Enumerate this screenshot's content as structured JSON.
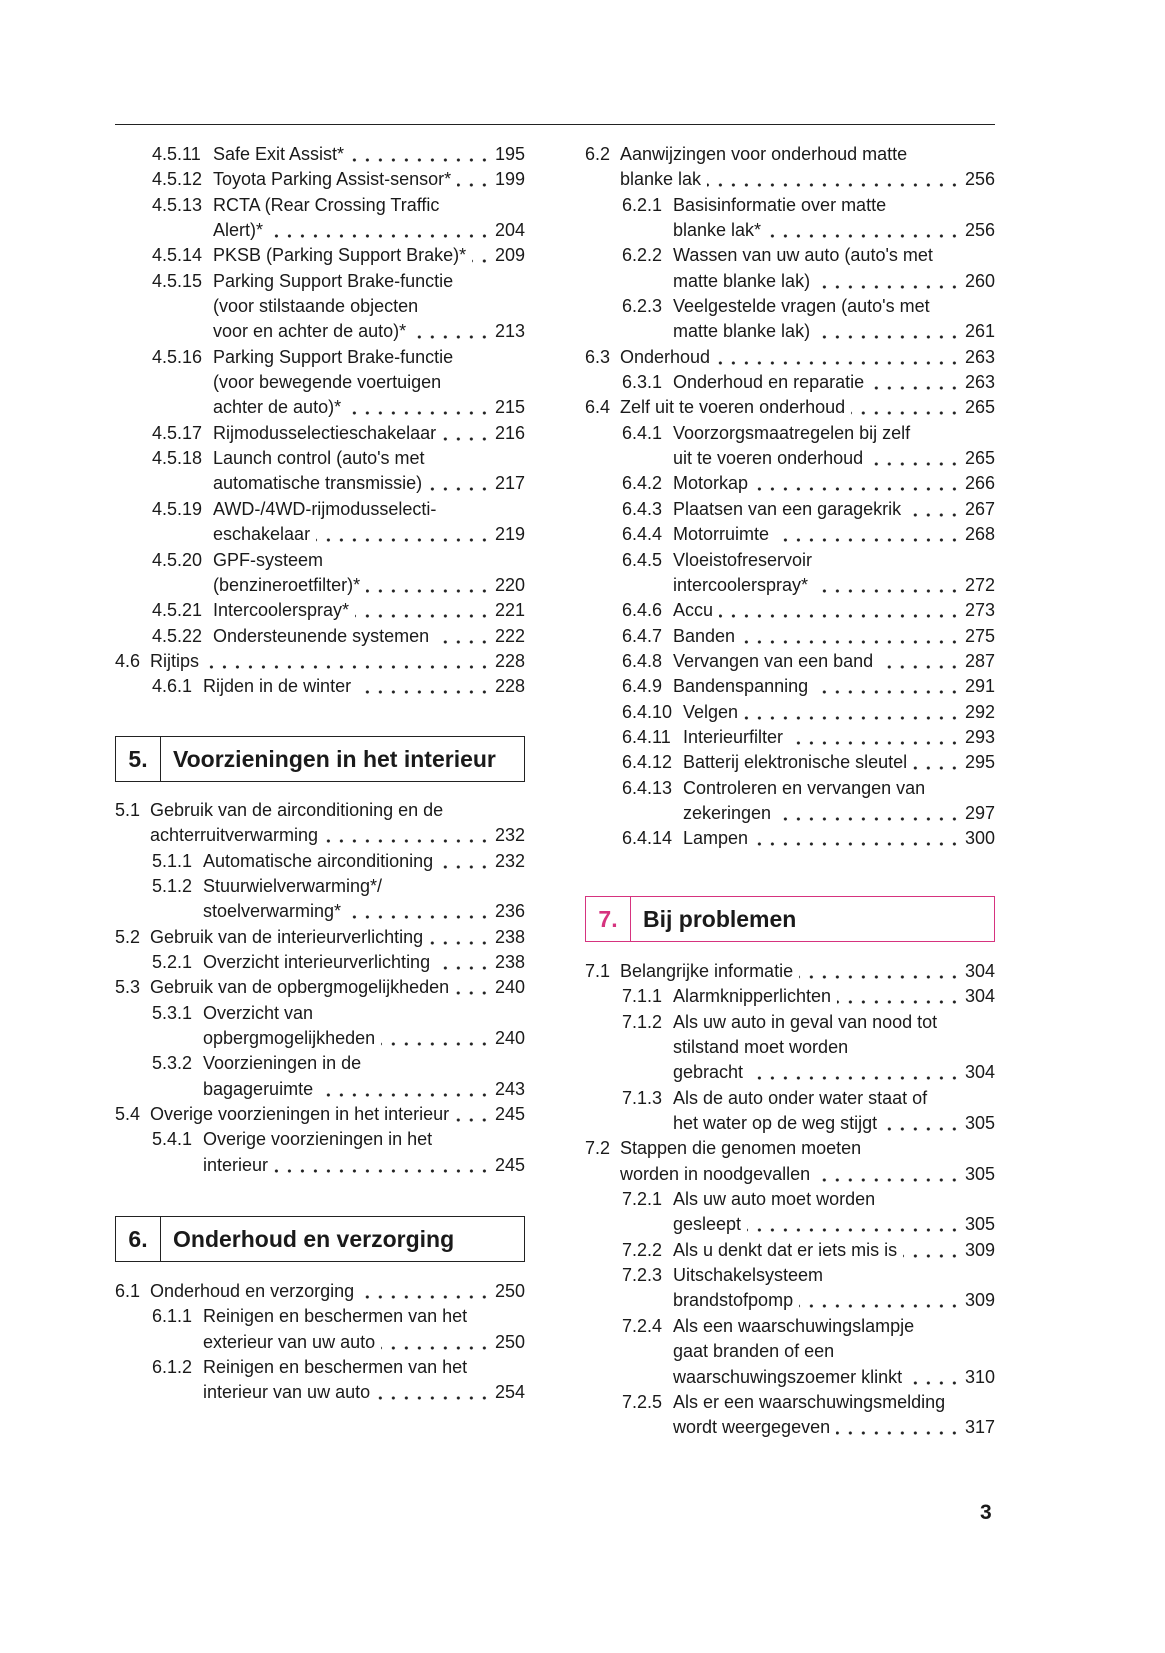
{
  "accent_color": "#d6337f",
  "page_number": "3",
  "left": {
    "block_a": [
      {
        "num": "4.5.11",
        "level": 2,
        "long": true,
        "lines": [
          "Safe Exit Assist*"
        ],
        "page": "195"
      },
      {
        "num": "4.5.12",
        "level": 2,
        "long": true,
        "lines": [
          "Toyota Parking Assist-sensor*"
        ],
        "page": "199"
      },
      {
        "num": "4.5.13",
        "level": 2,
        "long": true,
        "lines": [
          "RCTA (Rear Crossing Traffic",
          "Alert)*"
        ],
        "page": "204"
      },
      {
        "num": "4.5.14",
        "level": 2,
        "long": true,
        "lines": [
          "PKSB (Parking Support Brake)*"
        ],
        "page": "209"
      },
      {
        "num": "4.5.15",
        "level": 2,
        "long": true,
        "lines": [
          "Parking Support Brake-functie",
          "(voor stilstaande objecten",
          "voor en achter de auto)*"
        ],
        "page": "213"
      },
      {
        "num": "4.5.16",
        "level": 2,
        "long": true,
        "lines": [
          "Parking Support Brake-functie",
          "(voor bewegende voertuigen",
          "achter de auto)*"
        ],
        "page": "215"
      },
      {
        "num": "4.5.17",
        "level": 2,
        "long": true,
        "lines": [
          "Rijmodusselectieschakelaar"
        ],
        "page": "216"
      },
      {
        "num": "4.5.18",
        "level": 2,
        "long": true,
        "lines": [
          "Launch control (auto's met",
          "automatische transmissie)"
        ],
        "page": "217"
      },
      {
        "num": "4.5.19",
        "level": 2,
        "long": true,
        "lines": [
          "AWD-/4WD-rijmodusselecti-",
          "eschakelaar"
        ],
        "page": "219"
      },
      {
        "num": "4.5.20",
        "level": 2,
        "long": true,
        "lines": [
          "GPF-systeem",
          "(benzineroetfilter)*"
        ],
        "page": "220"
      },
      {
        "num": "4.5.21",
        "level": 2,
        "long": true,
        "lines": [
          "Intercoolerspray*"
        ],
        "page": "221"
      },
      {
        "num": "4.5.22",
        "level": 2,
        "long": true,
        "lines": [
          "Ondersteunende systemen"
        ],
        "page": "222"
      },
      {
        "num": "4.6",
        "level": 1,
        "lines": [
          "Rijtips"
        ],
        "page": "228"
      },
      {
        "num": "4.6.1",
        "level": 2,
        "lines": [
          "Rijden in de winter"
        ],
        "page": "228"
      }
    ],
    "chapter5": {
      "num": "5.",
      "title": "Voorzieningen in het interieur"
    },
    "block_b": [
      {
        "num": "5.1",
        "level": 1,
        "lines": [
          "Gebruik van de airconditioning en de",
          "achterruitverwarming"
        ],
        "page": "232"
      },
      {
        "num": "5.1.1",
        "level": 2,
        "lines": [
          "Automatische airconditioning"
        ],
        "page": "232"
      },
      {
        "num": "5.1.2",
        "level": 2,
        "lines": [
          "Stuurwielverwarming*/",
          "stoelverwarming*"
        ],
        "page": "236"
      },
      {
        "num": "5.2",
        "level": 1,
        "lines": [
          "Gebruik van de interieurverlichting"
        ],
        "page": "238"
      },
      {
        "num": "5.2.1",
        "level": 2,
        "lines": [
          "Overzicht interieurverlichting"
        ],
        "page": "238"
      },
      {
        "num": "5.3",
        "level": 1,
        "lines": [
          "Gebruik van de opbergmogelijkheden"
        ],
        "page": "240"
      },
      {
        "num": "5.3.1",
        "level": 2,
        "lines": [
          "Overzicht van",
          "opbergmogelijkheden"
        ],
        "page": "240"
      },
      {
        "num": "5.3.2",
        "level": 2,
        "lines": [
          "Voorzieningen in de",
          "bagageruimte"
        ],
        "page": "243"
      },
      {
        "num": "5.4",
        "level": 1,
        "lines": [
          "Overige voorzieningen in het interieur"
        ],
        "page": "245"
      },
      {
        "num": "5.4.1",
        "level": 2,
        "lines": [
          "Overige voorzieningen in het",
          "interieur"
        ],
        "page": "245"
      }
    ],
    "chapter6": {
      "num": "6.",
      "title": "Onderhoud en verzorging"
    },
    "block_c": [
      {
        "num": "6.1",
        "level": 1,
        "lines": [
          "Onderhoud en verzorging"
        ],
        "page": "250"
      },
      {
        "num": "6.1.1",
        "level": 2,
        "lines": [
          "Reinigen en beschermen van het",
          "exterieur van uw auto"
        ],
        "page": "250"
      },
      {
        "num": "6.1.2",
        "level": 2,
        "lines": [
          "Reinigen en beschermen van het",
          "interieur van uw auto"
        ],
        "page": "254"
      }
    ]
  },
  "right": {
    "block_d": [
      {
        "num": "6.2",
        "level": 1,
        "lines": [
          "Aanwijzingen voor onderhoud matte",
          "blanke lak"
        ],
        "page": "256"
      },
      {
        "num": "6.2.1",
        "level": 2,
        "lines": [
          "Basisinformatie over matte",
          "blanke lak*"
        ],
        "page": "256"
      },
      {
        "num": "6.2.2",
        "level": 2,
        "lines": [
          "Wassen van uw auto (auto's met",
          "matte blanke lak)"
        ],
        "page": "260"
      },
      {
        "num": "6.2.3",
        "level": 2,
        "lines": [
          "Veelgestelde vragen (auto's met",
          "matte blanke lak)"
        ],
        "page": "261"
      },
      {
        "num": "6.3",
        "level": 1,
        "lines": [
          "Onderhoud"
        ],
        "page": "263"
      },
      {
        "num": "6.3.1",
        "level": 2,
        "lines": [
          "Onderhoud en reparatie"
        ],
        "page": "263"
      },
      {
        "num": "6.4",
        "level": 1,
        "lines": [
          "Zelf uit te voeren onderhoud"
        ],
        "page": "265"
      },
      {
        "num": "6.4.1",
        "level": 2,
        "lines": [
          "Voorzorgsmaatregelen bij zelf",
          "uit te voeren onderhoud"
        ],
        "page": "265"
      },
      {
        "num": "6.4.2",
        "level": 2,
        "lines": [
          "Motorkap"
        ],
        "page": "266"
      },
      {
        "num": "6.4.3",
        "level": 2,
        "lines": [
          "Plaatsen van een garagekrik"
        ],
        "page": "267"
      },
      {
        "num": "6.4.4",
        "level": 2,
        "lines": [
          "Motorruimte"
        ],
        "page": "268"
      },
      {
        "num": "6.4.5",
        "level": 2,
        "lines": [
          "Vloeistofreservoir",
          "intercoolerspray*"
        ],
        "page": "272"
      },
      {
        "num": "6.4.6",
        "level": 2,
        "lines": [
          "Accu"
        ],
        "page": "273"
      },
      {
        "num": "6.4.7",
        "level": 2,
        "lines": [
          "Banden"
        ],
        "page": "275"
      },
      {
        "num": "6.4.8",
        "level": 2,
        "lines": [
          "Vervangen van een band"
        ],
        "page": "287"
      },
      {
        "num": "6.4.9",
        "level": 2,
        "lines": [
          "Bandenspanning"
        ],
        "page": "291"
      },
      {
        "num": "6.4.10",
        "level": 2,
        "long": true,
        "lines": [
          "Velgen"
        ],
        "page": "292"
      },
      {
        "num": "6.4.11",
        "level": 2,
        "long": true,
        "lines": [
          "Interieurfilter"
        ],
        "page": "293"
      },
      {
        "num": "6.4.12",
        "level": 2,
        "long": true,
        "lines": [
          "Batterij elektronische sleutel"
        ],
        "page": "295"
      },
      {
        "num": "6.4.13",
        "level": 2,
        "long": true,
        "lines": [
          "Controleren en vervangen van",
          "zekeringen"
        ],
        "page": "297"
      },
      {
        "num": "6.4.14",
        "level": 2,
        "long": true,
        "lines": [
          "Lampen"
        ],
        "page": "300"
      }
    ],
    "chapter7": {
      "num": "7.",
      "title": "Bij problemen"
    },
    "block_e": [
      {
        "num": "7.1",
        "level": 1,
        "lines": [
          "Belangrijke informatie"
        ],
        "page": "304"
      },
      {
        "num": "7.1.1",
        "level": 2,
        "lines": [
          "Alarmknipperlichten"
        ],
        "page": "304"
      },
      {
        "num": "7.1.2",
        "level": 2,
        "lines": [
          "Als uw auto in geval van nood tot",
          "stilstand moet worden",
          "gebracht"
        ],
        "page": "304"
      },
      {
        "num": "7.1.3",
        "level": 2,
        "lines": [
          "Als de auto onder water staat of",
          "het water op de weg stijgt"
        ],
        "page": "305"
      },
      {
        "num": "7.2",
        "level": 1,
        "lines": [
          "Stappen die genomen moeten",
          "worden in noodgevallen"
        ],
        "page": "305"
      },
      {
        "num": "7.2.1",
        "level": 2,
        "lines": [
          "Als uw auto moet worden",
          "gesleept"
        ],
        "page": "305"
      },
      {
        "num": "7.2.2",
        "level": 2,
        "lines": [
          "Als u denkt dat er iets mis is"
        ],
        "page": "309"
      },
      {
        "num": "7.2.3",
        "level": 2,
        "lines": [
          "Uitschakelsysteem",
          "brandstofpomp"
        ],
        "page": "309"
      },
      {
        "num": "7.2.4",
        "level": 2,
        "lines": [
          "Als een waarschuwingslampje",
          "gaat branden of een",
          "waarschuwingszoemer klinkt"
        ],
        "page": "310"
      },
      {
        "num": "7.2.5",
        "level": 2,
        "lines": [
          "Als er een waarschuwingsmelding",
          "wordt weergegeven"
        ],
        "page": "317"
      }
    ]
  }
}
